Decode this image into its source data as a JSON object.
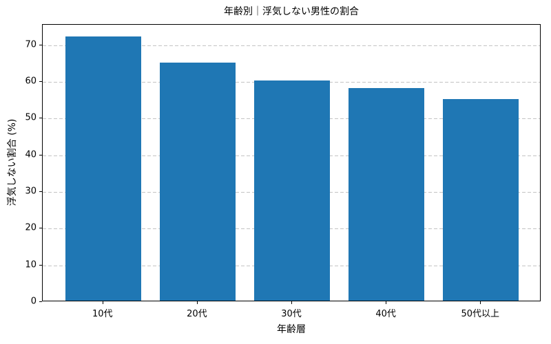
{
  "chart_data": {
    "type": "bar",
    "title": "年齢別｜浮気しない男性の割合",
    "categories": [
      "10代",
      "20代",
      "30代",
      "40代",
      "50代以上"
    ],
    "values": [
      72,
      65,
      60,
      58,
      55
    ],
    "xlabel": "年齢層",
    "ylabel": "浮気しない割合 (%)",
    "ylim": [
      0,
      75.6
    ],
    "yticks": [
      0,
      10,
      20,
      30,
      40,
      50,
      60,
      70
    ],
    "bar_color": "#1f77b4",
    "grid": "horizontal-dashed",
    "grid_color": "#c3c3c3",
    "text_color": "#000000",
    "background_color": "#ffffff",
    "legend": "none"
  }
}
